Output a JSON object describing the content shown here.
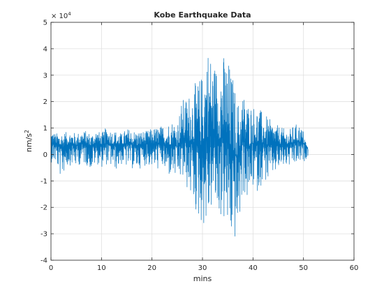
{
  "chart_data": {
    "type": "line",
    "title": "Kobe Earthquake Data",
    "xlabel": "mins",
    "ylabel_base": "nm/s",
    "ylabel_exponent": "2",
    "y_multiplier_base": "× 10",
    "y_multiplier_exponent": "4",
    "xlim": [
      0,
      60
    ],
    "ylim": [
      -40000,
      50000
    ],
    "xticks": [
      0,
      10,
      20,
      30,
      40,
      50,
      60
    ],
    "xtick_labels": [
      "0",
      "10",
      "20",
      "30",
      "40",
      "50",
      "60"
    ],
    "yticks": [
      -40000,
      -30000,
      -20000,
      -10000,
      0,
      10000,
      20000,
      30000,
      40000,
      50000
    ],
    "ytick_labels": [
      "-4",
      "-3",
      "-2",
      "-1",
      "0",
      "1",
      "2",
      "3",
      "4",
      "5"
    ],
    "grid": true,
    "line_color": "#0072bd",
    "series": [
      {
        "x": [
          0,
          1,
          2,
          3,
          4,
          5,
          6,
          7,
          8,
          9,
          10,
          11,
          12,
          13,
          14,
          15,
          16,
          17,
          18,
          19,
          20,
          21,
          22,
          23,
          24,
          25,
          26,
          27,
          28,
          29,
          30,
          31,
          32,
          33,
          34,
          35,
          36,
          37,
          38,
          39,
          40,
          41,
          42,
          43,
          44,
          45,
          46,
          47,
          48,
          49,
          50,
          51
        ],
        "max": [
          9500,
          8000,
          9000,
          8500,
          9000,
          8000,
          9000,
          9000,
          8000,
          9500,
          8000,
          10500,
          9500,
          9000,
          8000,
          10000,
          9500,
          9000,
          9000,
          9000,
          10000,
          10500,
          11000,
          12000,
          13000,
          12500,
          21000,
          22000,
          26000,
          28000,
          31000,
          42500,
          36000,
          34000,
          38500,
          37000,
          30000,
          20000,
          24000,
          20000,
          19000,
          18000,
          16000,
          14000,
          12000,
          11000,
          10000,
          9000,
          11000,
          12000,
          9000,
          0
        ],
        "min": [
          -3000,
          -3500,
          -9500,
          -5000,
          -4000,
          -5000,
          -3500,
          -4000,
          -6000,
          -3500,
          -5000,
          -4000,
          -5000,
          -6000,
          -4000,
          -5000,
          -5500,
          -6000,
          -5000,
          -4000,
          -5000,
          -6000,
          -5000,
          -9000,
          -8000,
          -10500,
          -10000,
          -14000,
          -18000,
          -25000,
          -27000,
          -28800,
          -19000,
          -24000,
          -25000,
          -31000,
          -34500,
          -32000,
          -14500,
          -19000,
          -13000,
          -14500,
          -10000,
          -11000,
          -8000,
          -6500,
          -5000,
          -5000,
          -5000,
          -4000,
          -3500,
          0
        ]
      }
    ]
  }
}
